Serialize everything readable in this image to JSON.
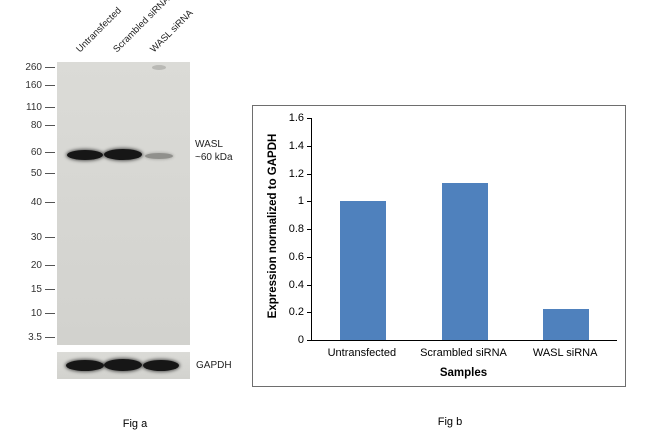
{
  "figure": {
    "fig_a_caption": "Fig a",
    "fig_b_caption": "Fig b"
  },
  "blot": {
    "lane_labels": [
      "Untransfected",
      "Scrambled siRNA",
      "WASL siRNA"
    ],
    "markers": [
      "260",
      "160",
      "110",
      "80",
      "60",
      "50",
      "40",
      "30",
      "20",
      "15",
      "10",
      "3.5"
    ],
    "target_label": "WASL",
    "target_mw_label": "~60 kDa",
    "loading_control_label": "GAPDH",
    "wasl_band_intensities": [
      "strong",
      "strong",
      "faint"
    ],
    "gapdh_band_intensities": [
      "strong",
      "strong",
      "strong"
    ]
  },
  "chart_data": {
    "type": "bar",
    "categories": [
      "Untransfected",
      "Scrambled siRNA",
      "WASL siRNA"
    ],
    "values": [
      1.0,
      1.13,
      0.22
    ],
    "title": "",
    "xlabel": "Samples",
    "ylabel": "Expression normalized to GAPDH",
    "ylim": [
      0,
      1.6
    ],
    "ytick_step": 0.2,
    "bar_color": "#4f81bd",
    "grid": false,
    "legend": false
  }
}
